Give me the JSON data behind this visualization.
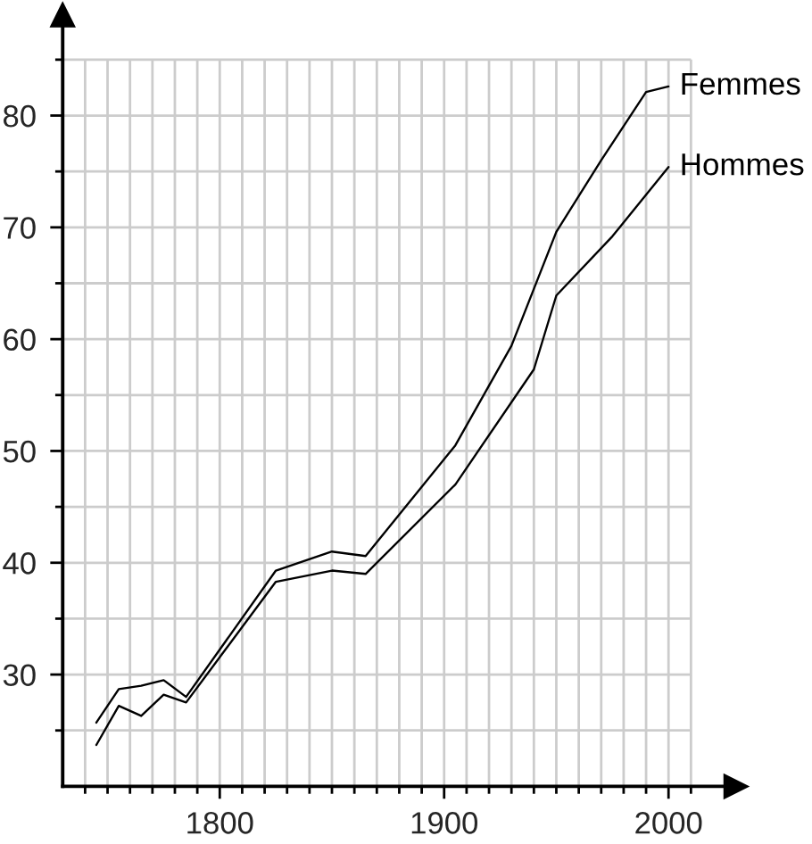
{
  "chart_data": {
    "type": "line",
    "xlim": [
      1730,
      2030
    ],
    "ylim": [
      20,
      89
    ],
    "xticks": [
      {
        "value": 1740,
        "label": null
      },
      {
        "value": 1750,
        "label": null
      },
      {
        "value": 1760,
        "label": null
      },
      {
        "value": 1770,
        "label": null
      },
      {
        "value": 1780,
        "label": null
      },
      {
        "value": 1790,
        "label": null
      },
      1800,
      {
        "value": 1810,
        "label": null
      },
      {
        "value": 1820,
        "label": null
      },
      {
        "value": 1830,
        "label": null
      },
      {
        "value": 1840,
        "label": null
      },
      {
        "value": 1850,
        "label": null
      },
      {
        "value": 1860,
        "label": null
      },
      {
        "value": 1870,
        "label": null
      },
      {
        "value": 1880,
        "label": null
      },
      {
        "value": 1890,
        "label": null
      },
      1900,
      {
        "value": 1910,
        "label": null
      },
      {
        "value": 1920,
        "label": null
      },
      {
        "value": 1930,
        "label": null
      },
      {
        "value": 1940,
        "label": null
      },
      {
        "value": 1950,
        "label": null
      },
      {
        "value": 1960,
        "label": null
      },
      {
        "value": 1970,
        "label": null
      },
      {
        "value": 1980,
        "label": null
      },
      {
        "value": 1990,
        "label": null
      },
      2000,
      {
        "value": 2010,
        "label": null
      }
    ],
    "yticks": [
      {
        "value": 25,
        "label": null
      },
      30,
      {
        "value": 35,
        "label": null
      },
      40,
      {
        "value": 45,
        "label": null
      },
      50,
      {
        "value": 55,
        "label": null
      },
      60,
      {
        "value": 65,
        "label": null
      },
      70,
      {
        "value": 75,
        "label": null
      },
      80,
      {
        "value": 85,
        "label": null
      }
    ],
    "grid": true,
    "series": [
      {
        "name": "Femmes",
        "color": "#000000",
        "x": [
          1745,
          1755,
          1765,
          1775,
          1785,
          1825,
          1850,
          1865,
          1905,
          1930,
          1950,
          1970,
          1990,
          2000
        ],
        "values": [
          25.7,
          28.7,
          29.0,
          29.5,
          28.0,
          39.3,
          41.0,
          40.6,
          50.5,
          59.4,
          69.6,
          76.0,
          82.1,
          82.6
        ]
      },
      {
        "name": "Hommes",
        "color": "#000000",
        "x": [
          1745,
          1755,
          1765,
          1775,
          1785,
          1825,
          1850,
          1865,
          1905,
          1940,
          1950,
          1975,
          2000
        ],
        "values": [
          23.7,
          27.2,
          26.3,
          28.2,
          27.5,
          38.3,
          39.3,
          39.0,
          47.0,
          57.3,
          63.9,
          69.2,
          75.4
        ]
      }
    ]
  }
}
